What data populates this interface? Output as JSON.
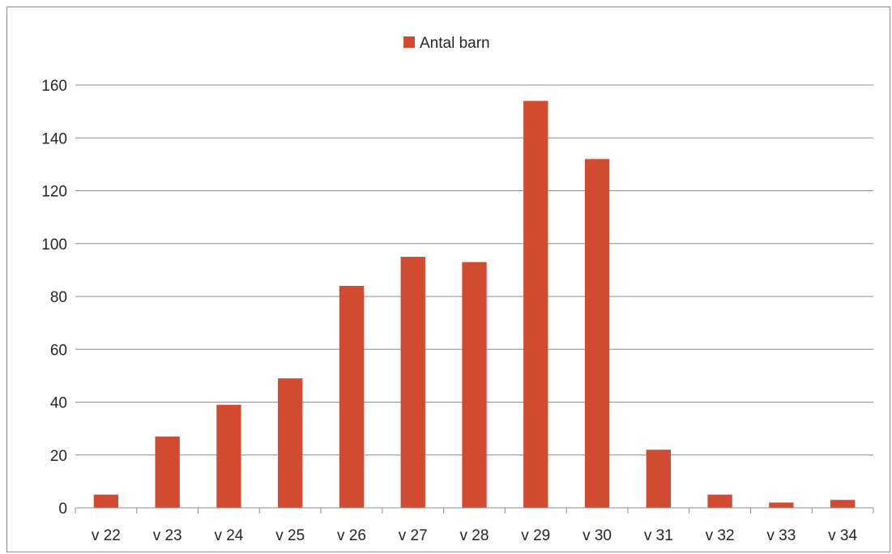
{
  "chart_data": {
    "type": "bar",
    "categories": [
      "v 22",
      "v 23",
      "v 24",
      "v 25",
      "v 26",
      "v 27",
      "v 28",
      "v 29",
      "v 30",
      "v 31",
      "v 32",
      "v 33",
      "v 34"
    ],
    "series": [
      {
        "name": "Antal barn",
        "color": "#D24A2F",
        "values": [
          5,
          27,
          39,
          49,
          84,
          95,
          93,
          154,
          132,
          22,
          5,
          2,
          3
        ]
      }
    ],
    "ylim": [
      0,
      160
    ],
    "yticks": [
      0,
      20,
      40,
      60,
      80,
      100,
      120,
      140,
      160
    ],
    "grid": true,
    "legend_position": "top-center",
    "gridline_color": "#8c8c8c",
    "text_color": "#262626"
  }
}
